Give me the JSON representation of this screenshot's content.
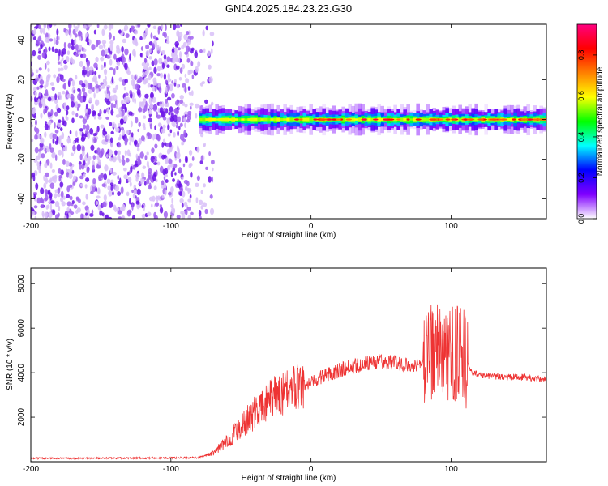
{
  "page": {
    "title": "GN04.2025.184.23.23.G30"
  },
  "chart_data": [
    {
      "type": "heatmap",
      "title": "GN04.2025.184.23.23.G30",
      "xlabel": "Height of straight line (km)",
      "ylabel": "Frequency (Hz)",
      "xlim": [
        -200,
        168
      ],
      "ylim": [
        -50,
        48
      ],
      "x_ticks": [
        -200,
        -100,
        0,
        100
      ],
      "y_ticks": [
        40,
        20,
        0,
        -20,
        -40
      ],
      "colorbar": {
        "label": "Normalized spectral amplitude",
        "range": [
          0,
          0.95
        ],
        "ticks": [
          "0.0",
          "0.2",
          "0.4",
          "0.6",
          "0.8"
        ],
        "colormap": [
          "#ffffff",
          "#8000ff",
          "#0000ff",
          "#00ffff",
          "#00ff00",
          "#ffff00",
          "#ff8000",
          "#ff0000",
          "#ff0080"
        ]
      },
      "regions": [
        {
          "x_range": [
            -200,
            -70
          ],
          "description": "broadband noise",
          "amplitude": 0.05
        },
        {
          "x_range": [
            -80,
            168
          ],
          "freq_center": 0,
          "bandwidth_hz": 5,
          "amplitude": 0.6
        }
      ],
      "grid": false,
      "legend": "none"
    },
    {
      "type": "line",
      "xlabel": "Height of straight line (km)",
      "ylabel": "SNR (10 * v/v)",
      "xlim": [
        -200,
        168
      ],
      "ylim": [
        0,
        8700
      ],
      "x_ticks": [
        -200,
        -100,
        0,
        100
      ],
      "y_ticks": [
        2000,
        4000,
        6000,
        8000
      ],
      "color": "#ee3333",
      "series": [
        {
          "x": [
            -200,
            -180,
            -160,
            -140,
            -120,
            -100,
            -80,
            -70,
            -60,
            -50,
            -40,
            -30,
            -20,
            -10,
            0,
            10,
            20,
            30,
            40,
            50,
            60,
            70,
            80,
            85,
            90,
            95,
            100,
            105,
            110,
            115,
            120,
            130,
            140,
            150,
            160,
            168
          ],
          "values": [
            150,
            150,
            150,
            160,
            160,
            170,
            180,
            400,
            900,
            1600,
            2200,
            2700,
            3100,
            3300,
            3500,
            3900,
            4100,
            4300,
            4450,
            4500,
            4450,
            4350,
            4400,
            4800,
            5600,
            4500,
            5000,
            4800,
            4600,
            4000,
            3900,
            3850,
            3800,
            3800,
            3750,
            3700
          ]
        }
      ],
      "grid": false,
      "legend": "none"
    }
  ],
  "icons": {}
}
